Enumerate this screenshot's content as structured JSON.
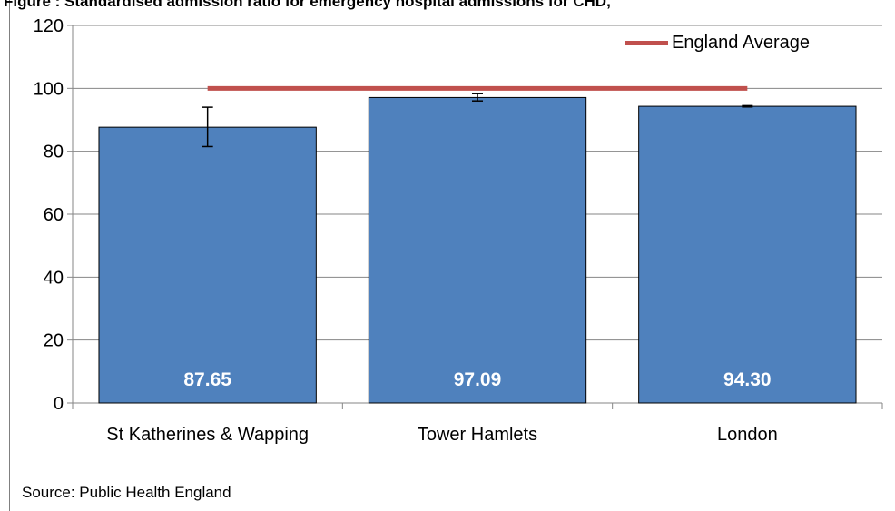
{
  "title": "Figure : Standardised admission ratio for emergency hospital admissions for CHD,",
  "source": "Source: Public Health England",
  "chart_data": {
    "type": "bar",
    "categories": [
      "St Katherines & Wapping",
      "Tower Hamlets",
      "London"
    ],
    "values": [
      87.65,
      97.09,
      94.3
    ],
    "value_labels": [
      "87.65",
      "97.09",
      "94.30"
    ],
    "error_bars": [
      [
        81.5,
        94.0
      ],
      [
        96.0,
        98.3
      ],
      [
        94.1,
        94.5
      ]
    ],
    "reference_line": {
      "name": "England Average",
      "value": 100,
      "color": "#c0504d"
    },
    "ylim": [
      0,
      120
    ],
    "yticks": [
      "0",
      "20",
      "40",
      "60",
      "80",
      "100",
      "120"
    ],
    "grid": true,
    "legend_position": "top-right",
    "bar_color": "#4f81bd",
    "bar_border": "#000000"
  }
}
